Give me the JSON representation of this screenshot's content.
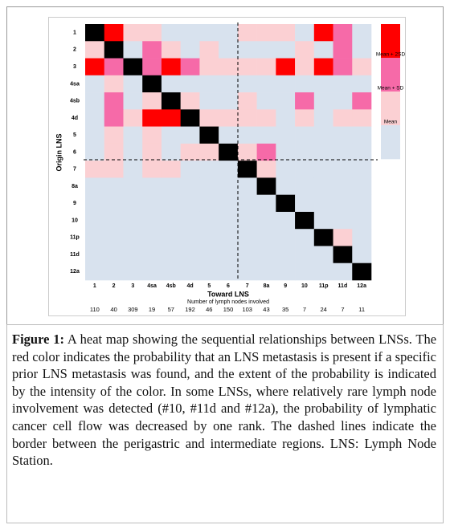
{
  "chart_data": {
    "type": "heatmap",
    "x_label": "Toward LNS",
    "y_label": "Origin LNS",
    "categories": [
      "1",
      "2",
      "3",
      "4sa",
      "4sb",
      "4d",
      "5",
      "6",
      "7",
      "8a",
      "9",
      "10",
      "11p",
      "11d",
      "12a"
    ],
    "rows": [
      "1",
      "2",
      "3",
      "4sa",
      "4sb",
      "4d",
      "5",
      "6",
      "7",
      "8a",
      "9",
      "10",
      "11p",
      "11d",
      "12a"
    ],
    "counts_label": "Number of lymph nodes involved",
    "counts": [
      110,
      40,
      309,
      19,
      57,
      192,
      46,
      150,
      103,
      43,
      35,
      7,
      24,
      7,
      11
    ],
    "values": [
      [
        null,
        3,
        1,
        1,
        0,
        0,
        0,
        0,
        1,
        1,
        1,
        0,
        3,
        2,
        0
      ],
      [
        1,
        null,
        0,
        2,
        1,
        0,
        1,
        0,
        0,
        0,
        0,
        1,
        0,
        2,
        0
      ],
      [
        3,
        2,
        null,
        2,
        3,
        2,
        1,
        1,
        1,
        1,
        3,
        1,
        3,
        2,
        1
      ],
      [
        0,
        1,
        0,
        null,
        0,
        0,
        0,
        0,
        0,
        0,
        0,
        0,
        0,
        0,
        0
      ],
      [
        0,
        2,
        0,
        1,
        null,
        1,
        0,
        0,
        1,
        0,
        0,
        2,
        0,
        0,
        2
      ],
      [
        0,
        2,
        1,
        3,
        3,
        null,
        1,
        1,
        1,
        1,
        0,
        1,
        0,
        1,
        1
      ],
      [
        0,
        1,
        0,
        1,
        0,
        0,
        null,
        0,
        0,
        0,
        0,
        0,
        0,
        0,
        0
      ],
      [
        0,
        1,
        0,
        1,
        0,
        1,
        1,
        null,
        1,
        2,
        0,
        0,
        0,
        0,
        0
      ],
      [
        1,
        1,
        0,
        1,
        1,
        0,
        0,
        0,
        null,
        1,
        0,
        0,
        0,
        0,
        0
      ],
      [
        0,
        0,
        0,
        0,
        0,
        0,
        0,
        0,
        0,
        null,
        0,
        0,
        0,
        0,
        0
      ],
      [
        0,
        0,
        0,
        0,
        0,
        0,
        0,
        0,
        0,
        0,
        null,
        0,
        0,
        0,
        0
      ],
      [
        0,
        0,
        0,
        0,
        0,
        0,
        0,
        0,
        0,
        0,
        0,
        null,
        0,
        0,
        0
      ],
      [
        0,
        0,
        0,
        0,
        0,
        0,
        0,
        0,
        0,
        0,
        0,
        0,
        null,
        1,
        0
      ],
      [
        0,
        0,
        0,
        0,
        0,
        0,
        0,
        0,
        0,
        0,
        0,
        0,
        0,
        null,
        0
      ],
      [
        0,
        0,
        0,
        0,
        0,
        0,
        0,
        0,
        0,
        0,
        0,
        0,
        0,
        0,
        null
      ]
    ],
    "level_colors": [
      "#d8e2ee",
      "#fbd0d3",
      "#f66aa8",
      "#ff0000"
    ],
    "diagonal_color": "#000000",
    "legend_labels": [
      "Mean + 2SD",
      "Mean + SD",
      "Mean"
    ]
  },
  "caption": {
    "label": "Figure 1:",
    "text": "A heat map showing the sequential relationships between LNSs. The red color indicates the probability that an LNS metastasis is present if a specific prior LNS metastasis was found, and the extent of the probability is indicated by the intensity of the color. In some LNSs, where relatively rare lymph node involvement was detected (#10, #11d and #12a), the probability of lymphatic cancer cell flow was decreased by one rank. The dashed lines indicate the border between the perigastric and intermediate regions. LNS: Lymph Node Station."
  }
}
